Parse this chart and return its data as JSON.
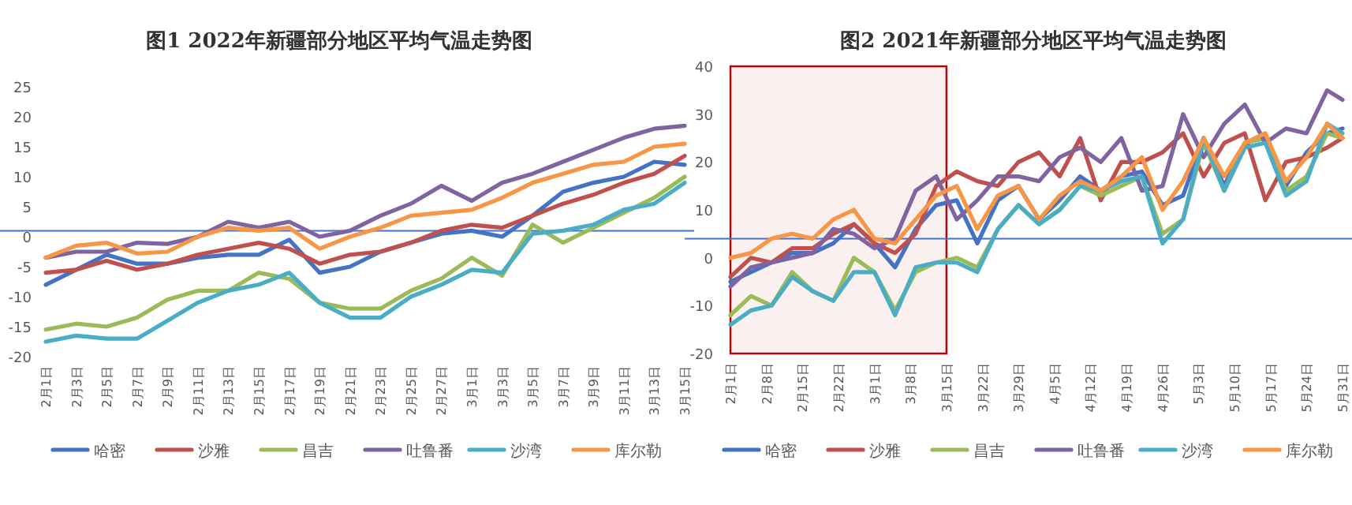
{
  "chart_data": [
    {
      "type": "line",
      "title": "图1 2022年新疆部分地区平均气温走势图",
      "x": [
        "2022-02-01",
        "2022-02-03",
        "2022-02-05",
        "2022-02-07",
        "2022-02-09",
        "2022-02-11",
        "2022-02-13",
        "2022-02-15",
        "2022-02-17",
        "2022-02-19",
        "2022-02-21",
        "2022-02-23",
        "2022-02-25",
        "2022-02-27",
        "2022-03-01",
        "2022-03-03",
        "2022-03-05",
        "2022-03-07",
        "2022-03-09",
        "2022-03-11",
        "2022-03-13",
        "2022-03-15"
      ],
      "xlim": [
        "2022-02-01",
        "2022-03-15"
      ],
      "xticks": [
        {
          "value": "2022-02-01",
          "label": "2月1日"
        },
        {
          "value": "2022-02-03",
          "label": "2月3日"
        },
        {
          "value": "2022-02-05",
          "label": "2月5日"
        },
        {
          "value": "2022-02-07",
          "label": "2月7日"
        },
        {
          "value": "2022-02-09",
          "label": "2月9日"
        },
        {
          "value": "2022-02-11",
          "label": "2月11日"
        },
        {
          "value": "2022-02-13",
          "label": "2月13日"
        },
        {
          "value": "2022-02-15",
          "label": "2月15日"
        },
        {
          "value": "2022-02-17",
          "label": "2月17日"
        },
        {
          "value": "2022-02-19",
          "label": "2月19日"
        },
        {
          "value": "2022-02-21",
          "label": "2月21日"
        },
        {
          "value": "2022-02-23",
          "label": "2月23日"
        },
        {
          "value": "2022-02-25",
          "label": "2月25日"
        },
        {
          "value": "2022-02-27",
          "label": "2月27日"
        },
        {
          "value": "2022-03-01",
          "label": "3月1日"
        },
        {
          "value": "2022-03-03",
          "label": "3月3日"
        },
        {
          "value": "2022-03-05",
          "label": "3月5日"
        },
        {
          "value": "2022-03-07",
          "label": "3月7日"
        },
        {
          "value": "2022-03-09",
          "label": "3月9日"
        },
        {
          "value": "2022-03-11",
          "label": "3月11日"
        },
        {
          "value": "2022-03-13",
          "label": "3月13日"
        },
        {
          "value": "2022-03-15",
          "label": "3月15日"
        }
      ],
      "ylim": [
        -20,
        25
      ],
      "yticks": [
        -20,
        -15,
        -10,
        -5,
        0,
        5,
        10,
        15,
        20,
        25
      ],
      "legend": "bottom",
      "ref_lines": [
        {
          "axis": "y",
          "value": 1,
          "color": "#4472c4"
        }
      ],
      "series": [
        {
          "name": "哈密",
          "color": "#4472c4",
          "values": [
            -8,
            -5.5,
            -3,
            -4.5,
            -4.5,
            -3.5,
            -3,
            -3,
            -0.5,
            -6,
            -5,
            -2.5,
            -1,
            0.5,
            1,
            0,
            3.5,
            7.5,
            9,
            10,
            12.5,
            12
          ]
        },
        {
          "name": "沙雅",
          "color": "#c0504d",
          "values": [
            -6,
            -5.5,
            -4,
            -5.5,
            -4.5,
            -3,
            -2,
            -1,
            -2,
            -4.5,
            -3,
            -2.5,
            -1,
            1,
            2,
            1.5,
            3.5,
            5.5,
            7,
            9,
            10.5,
            13.5
          ]
        },
        {
          "name": "昌吉",
          "color": "#9bbb59",
          "values": [
            -15.5,
            -14.5,
            -15,
            -13.5,
            -10.5,
            -9,
            -9,
            -6,
            -7,
            -11,
            -12,
            -12,
            -9,
            -7,
            -3.5,
            -6.5,
            2,
            -1,
            1.5,
            4,
            6.5,
            10
          ]
        },
        {
          "name": "吐鲁番",
          "color": "#8064a2",
          "values": [
            -3.5,
            -2.5,
            -2.5,
            -1,
            -1.2,
            0,
            2.5,
            1.5,
            2.5,
            0,
            1,
            3.5,
            5.5,
            8.5,
            6,
            9,
            10.5,
            12.5,
            14.5,
            16.5,
            18,
            18.5
          ]
        },
        {
          "name": "沙湾",
          "color": "#4bacc6",
          "values": [
            -17.5,
            -16.5,
            -17,
            -17,
            -14,
            -11,
            -9,
            -8,
            -6,
            -11,
            -13.5,
            -13.5,
            -10,
            -8,
            -5.5,
            -6,
            0.5,
            1,
            2,
            4.5,
            5.5,
            9
          ]
        },
        {
          "name": "库尔勒",
          "color": "#f79646",
          "values": [
            -3.5,
            -1.5,
            -1,
            -2.8,
            -2.5,
            0,
            1.5,
            1,
            1.5,
            -2,
            0,
            1.5,
            3.5,
            4,
            4.5,
            6.5,
            9,
            10.5,
            12,
            12.5,
            15,
            15.5
          ]
        }
      ]
    },
    {
      "type": "line",
      "title": "图2 2021年新疆部分地区平均气温走势图",
      "x": [
        "2021-02-01",
        "2021-02-05",
        "2021-02-09",
        "2021-02-13",
        "2021-02-17",
        "2021-02-21",
        "2021-02-25",
        "2021-03-01",
        "2021-03-05",
        "2021-03-09",
        "2021-03-13",
        "2021-03-17",
        "2021-03-21",
        "2021-03-25",
        "2021-03-29",
        "2021-04-02",
        "2021-04-06",
        "2021-04-10",
        "2021-04-14",
        "2021-04-18",
        "2021-04-22",
        "2021-04-26",
        "2021-04-30",
        "2021-05-04",
        "2021-05-08",
        "2021-05-12",
        "2021-05-16",
        "2021-05-20",
        "2021-05-24",
        "2021-05-28",
        "2021-05-31"
      ],
      "xlim": [
        "2021-02-01",
        "2021-05-31"
      ],
      "xticks": [
        {
          "value": "2021-02-01",
          "label": "2月1日"
        },
        {
          "value": "2021-02-08",
          "label": "2月8日"
        },
        {
          "value": "2021-02-15",
          "label": "2月15日"
        },
        {
          "value": "2021-02-22",
          "label": "2月22日"
        },
        {
          "value": "2021-03-01",
          "label": "3月1日"
        },
        {
          "value": "2021-03-08",
          "label": "3月8日"
        },
        {
          "value": "2021-03-15",
          "label": "3月15日"
        },
        {
          "value": "2021-03-22",
          "label": "3月22日"
        },
        {
          "value": "2021-03-29",
          "label": "3月29日"
        },
        {
          "value": "2021-04-05",
          "label": "4月5日"
        },
        {
          "value": "2021-04-12",
          "label": "4月12日"
        },
        {
          "value": "2021-04-19",
          "label": "4月19日"
        },
        {
          "value": "2021-04-26",
          "label": "4月26日"
        },
        {
          "value": "2021-05-03",
          "label": "5月3日"
        },
        {
          "value": "2021-05-10",
          "label": "5月10日"
        },
        {
          "value": "2021-05-17",
          "label": "5月17日"
        },
        {
          "value": "2021-05-24",
          "label": "5月24日"
        },
        {
          "value": "2021-05-31",
          "label": "5月31日"
        }
      ],
      "ylim": [
        -20,
        40
      ],
      "yticks": [
        -20,
        -10,
        0,
        10,
        20,
        30,
        40
      ],
      "legend": "bottom",
      "ref_lines": [
        {
          "axis": "y",
          "value": 4,
          "color": "#4472c4"
        }
      ],
      "bands": [
        {
          "axis": "x",
          "from": "2021-02-01",
          "to": "2021-03-15",
          "color": "#c00000"
        }
      ],
      "series": [
        {
          "name": "哈密",
          "color": "#4472c4",
          "values": [
            -5,
            -3,
            -1,
            1,
            1,
            3,
            7,
            3,
            -2,
            6,
            11,
            12,
            3,
            12,
            15,
            8,
            12,
            17,
            14,
            17,
            18,
            11,
            13,
            25,
            15,
            24,
            25,
            15,
            22,
            26,
            27
          ]
        },
        {
          "name": "沙雅",
          "color": "#c0504d",
          "values": [
            -4,
            0,
            -1,
            2,
            2,
            5,
            7,
            3,
            1,
            5,
            15,
            18,
            16,
            15,
            20,
            22,
            17,
            25,
            12,
            20,
            20,
            22,
            26,
            17,
            24,
            26,
            12,
            20,
            21,
            23,
            25
          ]
        },
        {
          "name": "昌吉",
          "color": "#9bbb59",
          "values": [
            -12,
            -8,
            -10,
            -3,
            -7,
            -9,
            0,
            -3,
            -11,
            -3,
            -1,
            0,
            -2,
            6,
            11,
            7,
            10,
            15,
            13,
            15,
            17,
            5,
            8,
            24,
            14,
            24,
            25,
            14,
            17,
            26,
            25
          ]
        },
        {
          "name": "吐鲁番",
          "color": "#8064a2",
          "values": [
            -6,
            -2,
            -1,
            0,
            1,
            6,
            5,
            2,
            4,
            14,
            17,
            8,
            12,
            17,
            17,
            16,
            21,
            23,
            20,
            25,
            14,
            15,
            30,
            21,
            28,
            32,
            24,
            27,
            26,
            35,
            33
          ]
        },
        {
          "name": "沙湾",
          "color": "#4bacc6",
          "values": [
            -14,
            -11,
            -10,
            -4,
            -7,
            -9,
            -3,
            -3,
            -12,
            -2,
            -1,
            -1,
            -3,
            6,
            11,
            7,
            10,
            15,
            14,
            16,
            17,
            3,
            8,
            25,
            14,
            23,
            24,
            13,
            16,
            28,
            26
          ]
        },
        {
          "name": "库尔勒",
          "color": "#f79646",
          "values": [
            0,
            1,
            4,
            5,
            4,
            8,
            10,
            4,
            3,
            8,
            13,
            15,
            6,
            13,
            15,
            8,
            13,
            16,
            14,
            17,
            21,
            10,
            16,
            25,
            17,
            24,
            26,
            16,
            21,
            28,
            25
          ]
        }
      ]
    }
  ]
}
